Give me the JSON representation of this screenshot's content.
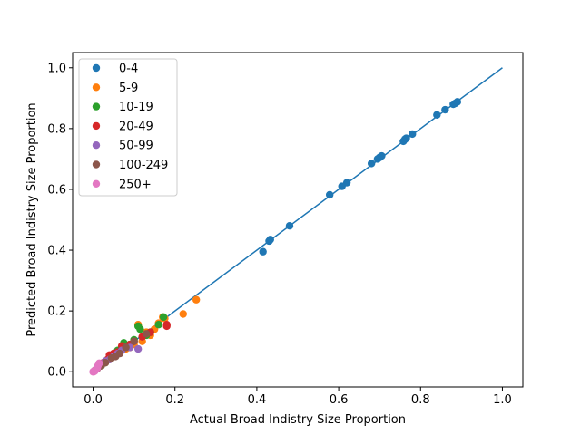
{
  "chart_data": {
    "type": "scatter",
    "title": "",
    "xlabel": "Actual Broad Indistry Size Proportion",
    "ylabel": "Predicted Broad Indistry Size Proportion",
    "xlim": [
      -0.05,
      1.05
    ],
    "ylim": [
      -0.05,
      1.05
    ],
    "xticks": [
      0.0,
      0.2,
      0.4,
      0.6,
      0.8,
      1.0
    ],
    "yticks": [
      0.0,
      0.2,
      0.4,
      0.6,
      0.8,
      1.0
    ],
    "xtick_labels": [
      "0.0",
      "0.2",
      "0.4",
      "0.6",
      "0.8",
      "1.0"
    ],
    "ytick_labels": [
      "0.0",
      "0.2",
      "0.4",
      "0.6",
      "0.8",
      "1.0"
    ],
    "grid": false,
    "legend_position": "top-left",
    "reference_line": {
      "x": [
        0.0,
        1.0
      ],
      "y": [
        0.0,
        1.0
      ],
      "color": "#1f77b4"
    },
    "series": [
      {
        "name": "0-4",
        "color": "#1f77b4",
        "points": [
          [
            0.415,
            0.395
          ],
          [
            0.43,
            0.43
          ],
          [
            0.433,
            0.435
          ],
          [
            0.48,
            0.48
          ],
          [
            0.578,
            0.582
          ],
          [
            0.608,
            0.61
          ],
          [
            0.62,
            0.622
          ],
          [
            0.68,
            0.685
          ],
          [
            0.695,
            0.7
          ],
          [
            0.7,
            0.705
          ],
          [
            0.705,
            0.71
          ],
          [
            0.758,
            0.758
          ],
          [
            0.762,
            0.765
          ],
          [
            0.765,
            0.768
          ],
          [
            0.78,
            0.782
          ],
          [
            0.84,
            0.845
          ],
          [
            0.86,
            0.862
          ],
          [
            0.88,
            0.88
          ],
          [
            0.885,
            0.883
          ],
          [
            0.89,
            0.888
          ],
          [
            0.1,
            0.1
          ],
          [
            0.08,
            0.085
          ],
          [
            0.06,
            0.06
          ],
          [
            0.04,
            0.04
          ],
          [
            0.02,
            0.02
          ]
        ]
      },
      {
        "name": "5-9",
        "color": "#ff7f0e",
        "points": [
          [
            0.252,
            0.237
          ],
          [
            0.22,
            0.19
          ],
          [
            0.175,
            0.175
          ],
          [
            0.16,
            0.16
          ],
          [
            0.17,
            0.18
          ],
          [
            0.15,
            0.14
          ],
          [
            0.14,
            0.12
          ],
          [
            0.12,
            0.1
          ],
          [
            0.11,
            0.155
          ],
          [
            0.1,
            0.09
          ],
          [
            0.09,
            0.08
          ],
          [
            0.08,
            0.075
          ],
          [
            0.07,
            0.07
          ],
          [
            0.06,
            0.06
          ],
          [
            0.05,
            0.05
          ],
          [
            0.04,
            0.04
          ],
          [
            0.03,
            0.03
          ],
          [
            0.02,
            0.02
          ],
          [
            0.13,
            0.13
          ]
        ]
      },
      {
        "name": "10-19",
        "color": "#2ca02c",
        "points": [
          [
            0.172,
            0.18
          ],
          [
            0.16,
            0.155
          ],
          [
            0.14,
            0.13
          ],
          [
            0.13,
            0.12
          ],
          [
            0.115,
            0.14
          ],
          [
            0.11,
            0.15
          ],
          [
            0.1,
            0.105
          ],
          [
            0.09,
            0.09
          ],
          [
            0.075,
            0.095
          ],
          [
            0.07,
            0.08
          ],
          [
            0.06,
            0.07
          ],
          [
            0.05,
            0.055
          ],
          [
            0.04,
            0.045
          ],
          [
            0.03,
            0.03
          ],
          [
            0.02,
            0.02
          ]
        ]
      },
      {
        "name": "20-49",
        "color": "#d62728",
        "points": [
          [
            0.18,
            0.15
          ],
          [
            0.18,
            0.155
          ],
          [
            0.14,
            0.13
          ],
          [
            0.12,
            0.115
          ],
          [
            0.1,
            0.1
          ],
          [
            0.09,
            0.09
          ],
          [
            0.08,
            0.08
          ],
          [
            0.07,
            0.085
          ],
          [
            0.06,
            0.065
          ],
          [
            0.05,
            0.06
          ],
          [
            0.04,
            0.055
          ],
          [
            0.035,
            0.04
          ],
          [
            0.025,
            0.03
          ],
          [
            0.015,
            0.02
          ]
        ]
      },
      {
        "name": "50-99",
        "color": "#9467bd",
        "points": [
          [
            0.11,
            0.075
          ],
          [
            0.09,
            0.08
          ],
          [
            0.07,
            0.07
          ],
          [
            0.06,
            0.06
          ],
          [
            0.05,
            0.05
          ],
          [
            0.04,
            0.04
          ],
          [
            0.03,
            0.035
          ],
          [
            0.02,
            0.025
          ],
          [
            0.01,
            0.015
          ],
          [
            0.005,
            0.005
          ]
        ]
      },
      {
        "name": "100-249",
        "color": "#8c564b",
        "points": [
          [
            0.13,
            0.125
          ],
          [
            0.1,
            0.1
          ],
          [
            0.08,
            0.08
          ],
          [
            0.065,
            0.06
          ],
          [
            0.055,
            0.05
          ],
          [
            0.045,
            0.045
          ],
          [
            0.03,
            0.03
          ],
          [
            0.02,
            0.02
          ],
          [
            0.01,
            0.01
          ],
          [
            0.004,
            0.004
          ]
        ]
      },
      {
        "name": "250+",
        "color": "#e377c2",
        "points": [
          [
            0.015,
            0.028
          ],
          [
            0.012,
            0.02
          ],
          [
            0.01,
            0.012
          ],
          [
            0.008,
            0.008
          ],
          [
            0.005,
            0.005
          ],
          [
            0.003,
            0.003
          ],
          [
            0.002,
            0.001
          ],
          [
            0.001,
            0.0
          ],
          [
            0.0,
            0.0
          ],
          [
            0.004,
            0.002
          ]
        ]
      }
    ]
  }
}
